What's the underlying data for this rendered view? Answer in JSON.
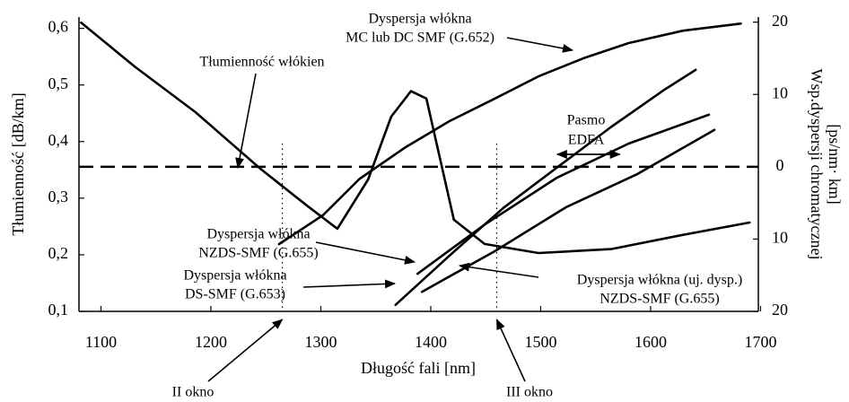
{
  "chart_data": {
    "type": "line",
    "xlabel": "Długość fali [nm]",
    "ylabel": "Tłumienność [dB/km]",
    "y2label": [
      "Wsp.dyspersji chromatycznej",
      "[ps/nm· km]"
    ],
    "xlim": [
      1080,
      1698
    ],
    "xticks": [
      1100,
      1200,
      1300,
      1400,
      1500,
      1600,
      1700
    ],
    "ylim": [
      0.1,
      0.62
    ],
    "yticks": [
      {
        "value": 0.1,
        "label": "0,1"
      },
      {
        "value": 0.2,
        "label": "0,2"
      },
      {
        "value": 0.3,
        "label": "0,3"
      },
      {
        "value": 0.4,
        "label": "0,4"
      },
      {
        "value": 0.5,
        "label": "0,5"
      },
      {
        "value": 0.6,
        "label": "0,6"
      }
    ],
    "y2lim": [
      -20,
      20.7
    ],
    "y2ticks": [
      {
        "value": -20,
        "label": "20"
      },
      {
        "value": -10,
        "label": "10"
      },
      0,
      10,
      20
    ],
    "reference_line": {
      "axis": "y2",
      "value": 0,
      "style": "dashed"
    },
    "windows": [
      {
        "label": "II okno",
        "x": 1265
      },
      {
        "label": "III okno",
        "x": 1460
      }
    ],
    "band": {
      "lines": [
        "Pasmo",
        "EDFA"
      ],
      "x": [
        1515,
        1572
      ]
    },
    "annotations": [
      {
        "lines": [
          "Dyspersja włókna",
          "MC lub DC SMF (G.652)"
        ]
      },
      {
        "lines": [
          "Tłumienność włókien"
        ]
      },
      {
        "lines": [
          "Dyspersja włókna",
          "NZDS-SMF (G.655)"
        ]
      },
      {
        "lines": [
          "Dyspersja włókna",
          "DS-SMF (G.653)"
        ]
      },
      {
        "lines": [
          "Dyspersja włókna (uj. dysp.)",
          "NZDS-SMF (G.655)"
        ]
      }
    ],
    "series": [
      {
        "color": "#000000",
        "axis": "y",
        "x": [
          1082,
          1131,
          1186,
          1245,
          1286,
          1315,
          1343,
          1364,
          1382,
          1396,
          1409,
          1421,
          1449,
          1498,
          1564,
          1629,
          1690
        ],
        "values": [
          0.61,
          0.532,
          0.452,
          0.352,
          0.289,
          0.246,
          0.333,
          0.444,
          0.489,
          0.476,
          0.365,
          0.262,
          0.219,
          0.203,
          0.21,
          0.235,
          0.257
        ]
      },
      {
        "color": "#000000",
        "axis": "y2",
        "x": [
          1262,
          1302,
          1335,
          1376,
          1417,
          1458,
          1498,
          1539,
          1580,
          1629,
          1682
        ],
        "values": [
          -10.7,
          -6.7,
          -1.7,
          2.6,
          6.3,
          9.4,
          12.5,
          15.0,
          17.1,
          18.8,
          19.8
        ]
      },
      {
        "color": "#000000",
        "axis": "y2",
        "x": [
          1368,
          1417,
          1466,
          1515,
          1564,
          1613,
          1641
        ],
        "values": [
          -19.1,
          -12.3,
          -5.7,
          -0.1,
          5.5,
          10.7,
          13.4
        ]
      },
      {
        "color": "#000000",
        "axis": "y2",
        "x": [
          1388,
          1449,
          1515,
          1580,
          1653
        ],
        "values": [
          -14.8,
          -8.0,
          -1.5,
          3.2,
          7.2
        ]
      },
      {
        "color": "#000000",
        "axis": "y2",
        "x": [
          1392,
          1458,
          1523,
          1588,
          1658
        ],
        "values": [
          -17.3,
          -11.7,
          -5.6,
          -1.0,
          5.1
        ]
      }
    ]
  }
}
